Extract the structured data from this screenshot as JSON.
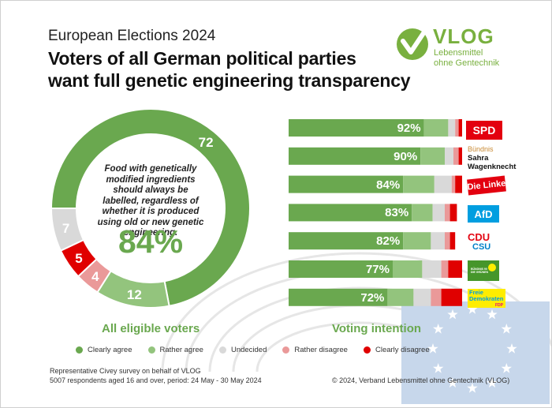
{
  "header": {
    "supertitle": "European Elections 2024",
    "title_line1": "Voters of all German political parties",
    "title_line2": "want full genetic engineering transparency"
  },
  "logo": {
    "word": "VLOG",
    "sub1": "Lebensmittel",
    "sub2": "ohne Gentechnik",
    "color": "#79b03f",
    "icon": "check-mark-icon"
  },
  "chart_data": [
    {
      "type": "pie",
      "subtype": "donut",
      "caption": "All eligible voters",
      "center_text": "Food with genetically modified ingredients should always be labelled, regardless of whether it is produced using old or new genetic engineering.",
      "center_value": "84%",
      "slices": [
        {
          "category": "Clearly agree",
          "value": 72,
          "label": "72",
          "color": "#6aa84f"
        },
        {
          "category": "Rather agree",
          "value": 12,
          "label": "12",
          "color": "#93c47d"
        },
        {
          "category": "Rather disagree",
          "value": 4,
          "label": "4",
          "color": "#ea9999"
        },
        {
          "category": "Clearly disagree",
          "value": 5,
          "label": "5",
          "color": "#e00000"
        },
        {
          "category": "Undecided",
          "value": 7,
          "label": "7",
          "color": "#d9d9d9"
        }
      ]
    },
    {
      "type": "bar",
      "orientation": "horizontal",
      "stacked": true,
      "caption": "Voting intention",
      "categories": [
        "SPD",
        "Bündnis Sahra Wagenknecht",
        "Die Linke",
        "AfD",
        "CDU/CSU",
        "Bündnis 90/Die Grünen",
        "FDP"
      ],
      "labels": [
        "92%",
        "90%",
        "84%",
        "83%",
        "82%",
        "77%",
        "72%"
      ],
      "series": [
        {
          "name": "Clearly agree",
          "color": "#6aa84f",
          "values": [
            78,
            76,
            66,
            71,
            66,
            60,
            57
          ]
        },
        {
          "name": "Rather agree",
          "color": "#93c47d",
          "values": [
            14,
            14,
            18,
            12,
            16,
            17,
            15
          ]
        },
        {
          "name": "Undecided",
          "color": "#d9d9d9",
          "values": [
            4,
            5,
            10,
            7,
            8,
            11,
            10
          ]
        },
        {
          "name": "Rather disagree",
          "color": "#ea9999",
          "values": [
            2,
            3,
            2,
            3,
            3,
            4,
            6
          ]
        },
        {
          "name": "Clearly disagree",
          "color": "#e00000",
          "values": [
            2,
            2,
            4,
            4,
            3,
            8,
            12
          ]
        }
      ],
      "xlim": [
        0,
        100
      ]
    }
  ],
  "party_logos": {
    "spd": "SPD",
    "bsw_line1": "Bündnis",
    "bsw_line2": "Sahra",
    "bsw_line3": "Wagenknecht",
    "linke": "Die Linke",
    "afd": "AfD",
    "cdu": "CDU",
    "csu": "CSU",
    "gruene": "BÜNDNIS 90 DIE GRÜNEN",
    "fdp_line1": "Freie",
    "fdp_line2": "Demokraten",
    "fdp_line3": "FDP"
  },
  "legend": [
    {
      "label": "Clearly agree",
      "color": "#6aa84f"
    },
    {
      "label": "Rather agree",
      "color": "#93c47d"
    },
    {
      "label": "Undecided",
      "color": "#d9d9d9"
    },
    {
      "label": "Rather disagree",
      "color": "#ea9999"
    },
    {
      "label": "Clearly disagree",
      "color": "#e00000"
    }
  ],
  "footer": {
    "source_line1": "Representative  Civey  survey on behalf of VLOG",
    "source_line2": "5007 respondents  aged 16 and over, period: 24 May - 30 May 2024",
    "copyright": "© 2024, Verband  Lebensmittel  ohne Gentechnik  (VLOG)"
  }
}
